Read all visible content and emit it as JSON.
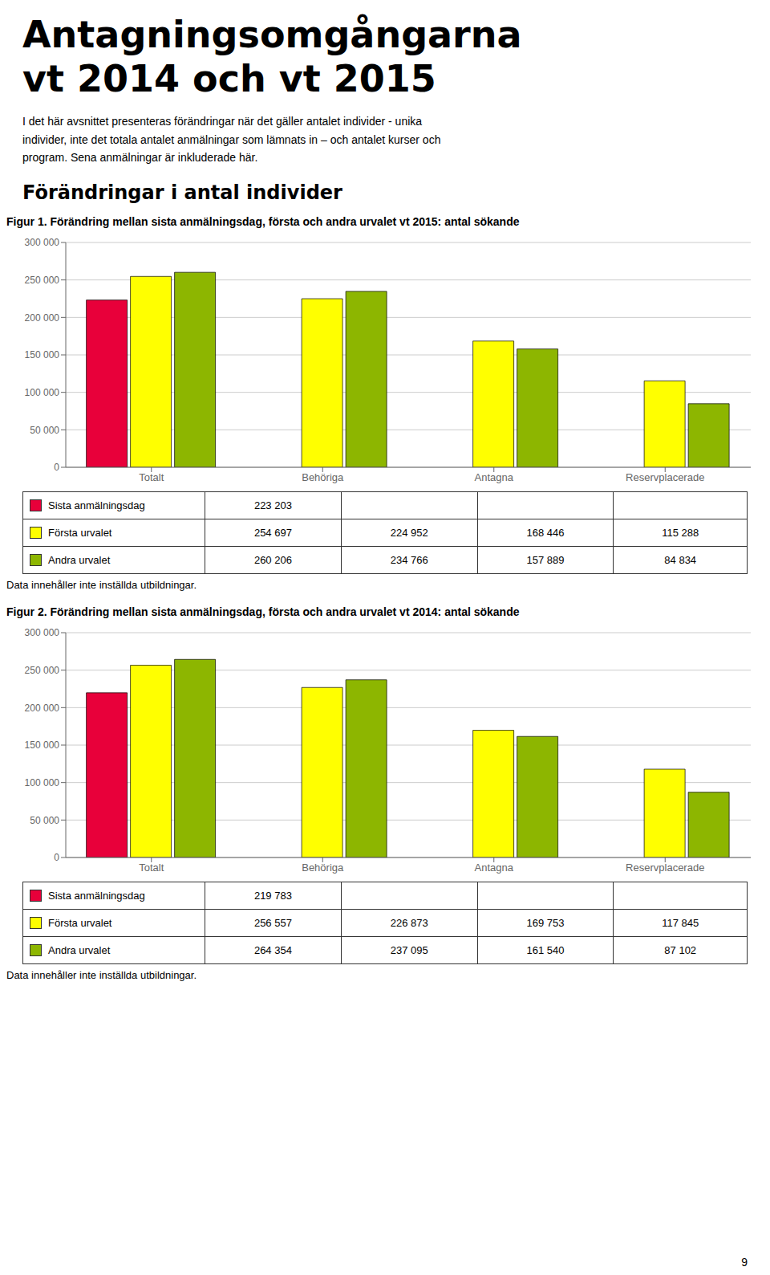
{
  "title": "Antagningsomgångarna\nvt 2014 och vt 2015",
  "annotations": [
    "I det här avsnittet presenteras förändringar när det gäller antalet individer - unika\nindivider, inte det totala antalet anmälningar som lämnats in – och antalet kurser och\nprogram. Sena anmälningar är inkluderade här.",
    "Förändringar i antal individer",
    "9"
  ],
  "chart_data": [
    {
      "type": "bar",
      "title": "Figur 1. Förändring mellan sista anmälningsdag, första och andra urvalet vt 2015: antal sökande",
      "categories": [
        "Totalt",
        "Behöriga",
        "Antagna",
        "Reservplacerade"
      ],
      "series": [
        {
          "name": "Sista anmälningsdag",
          "color": "#E8003A",
          "values": [
            223203,
            null,
            null,
            null
          ],
          "value_labels": [
            "223 203",
            null,
            null,
            null
          ]
        },
        {
          "name": "Första urvalet",
          "color": "#FFFF00",
          "values": [
            254697,
            224952,
            168446,
            115288
          ],
          "value_labels": [
            "254 697",
            "224 952",
            "168 446",
            "115 288"
          ]
        },
        {
          "name": "Andra urvalet",
          "color": "#8DB600",
          "values": [
            260206,
            234766,
            157889,
            84834
          ],
          "value_labels": [
            "260 206",
            "234 766",
            "157 889",
            "84 834"
          ]
        }
      ],
      "ylim": [
        0,
        300000
      ],
      "yticks": [
        0,
        {
          "value": 50000,
          "label": "50 000"
        },
        {
          "value": 100000,
          "label": "100 000"
        },
        {
          "value": 150000,
          "label": "150 000"
        },
        {
          "value": 200000,
          "label": "200 000"
        },
        {
          "value": 250000,
          "label": "250 000"
        },
        {
          "value": 300000,
          "label": "300 000"
        }
      ],
      "grid": true,
      "legend": "bottom",
      "annotations": [
        "Data innehåller inte inställda utbildningar."
      ]
    },
    {
      "type": "bar",
      "title": "Figur 2. Förändring mellan sista anmälningsdag, första och andra urvalet vt 2014: antal sökande",
      "categories": [
        "Totalt",
        "Behöriga",
        "Antagna",
        "Reservplacerade"
      ],
      "series": [
        {
          "name": "Sista anmälningsdag",
          "color": "#E8003A",
          "values": [
            219783,
            null,
            null,
            null
          ],
          "value_labels": [
            "219 783",
            null,
            null,
            null
          ]
        },
        {
          "name": "Första urvalet",
          "color": "#FFFF00",
          "values": [
            256557,
            226873,
            169753,
            117845
          ],
          "value_labels": [
            "256 557",
            "226 873",
            "169 753",
            "117 845"
          ]
        },
        {
          "name": "Andra urvalet",
          "color": "#8DB600",
          "values": [
            264354,
            237095,
            161540,
            87102
          ],
          "value_labels": [
            "264 354",
            "237 095",
            "161 540",
            "87 102"
          ]
        }
      ],
      "ylim": [
        0,
        300000
      ],
      "yticks": [
        0,
        {
          "value": 50000,
          "label": "50 000"
        },
        {
          "value": 100000,
          "label": "100 000"
        },
        {
          "value": 150000,
          "label": "150 000"
        },
        {
          "value": 200000,
          "label": "200 000"
        },
        {
          "value": 250000,
          "label": "250 000"
        },
        {
          "value": 300000,
          "label": "300 000"
        }
      ],
      "grid": true,
      "legend": "bottom",
      "annotations": [
        "Data innehåller inte inställda utbildningar."
      ]
    }
  ]
}
